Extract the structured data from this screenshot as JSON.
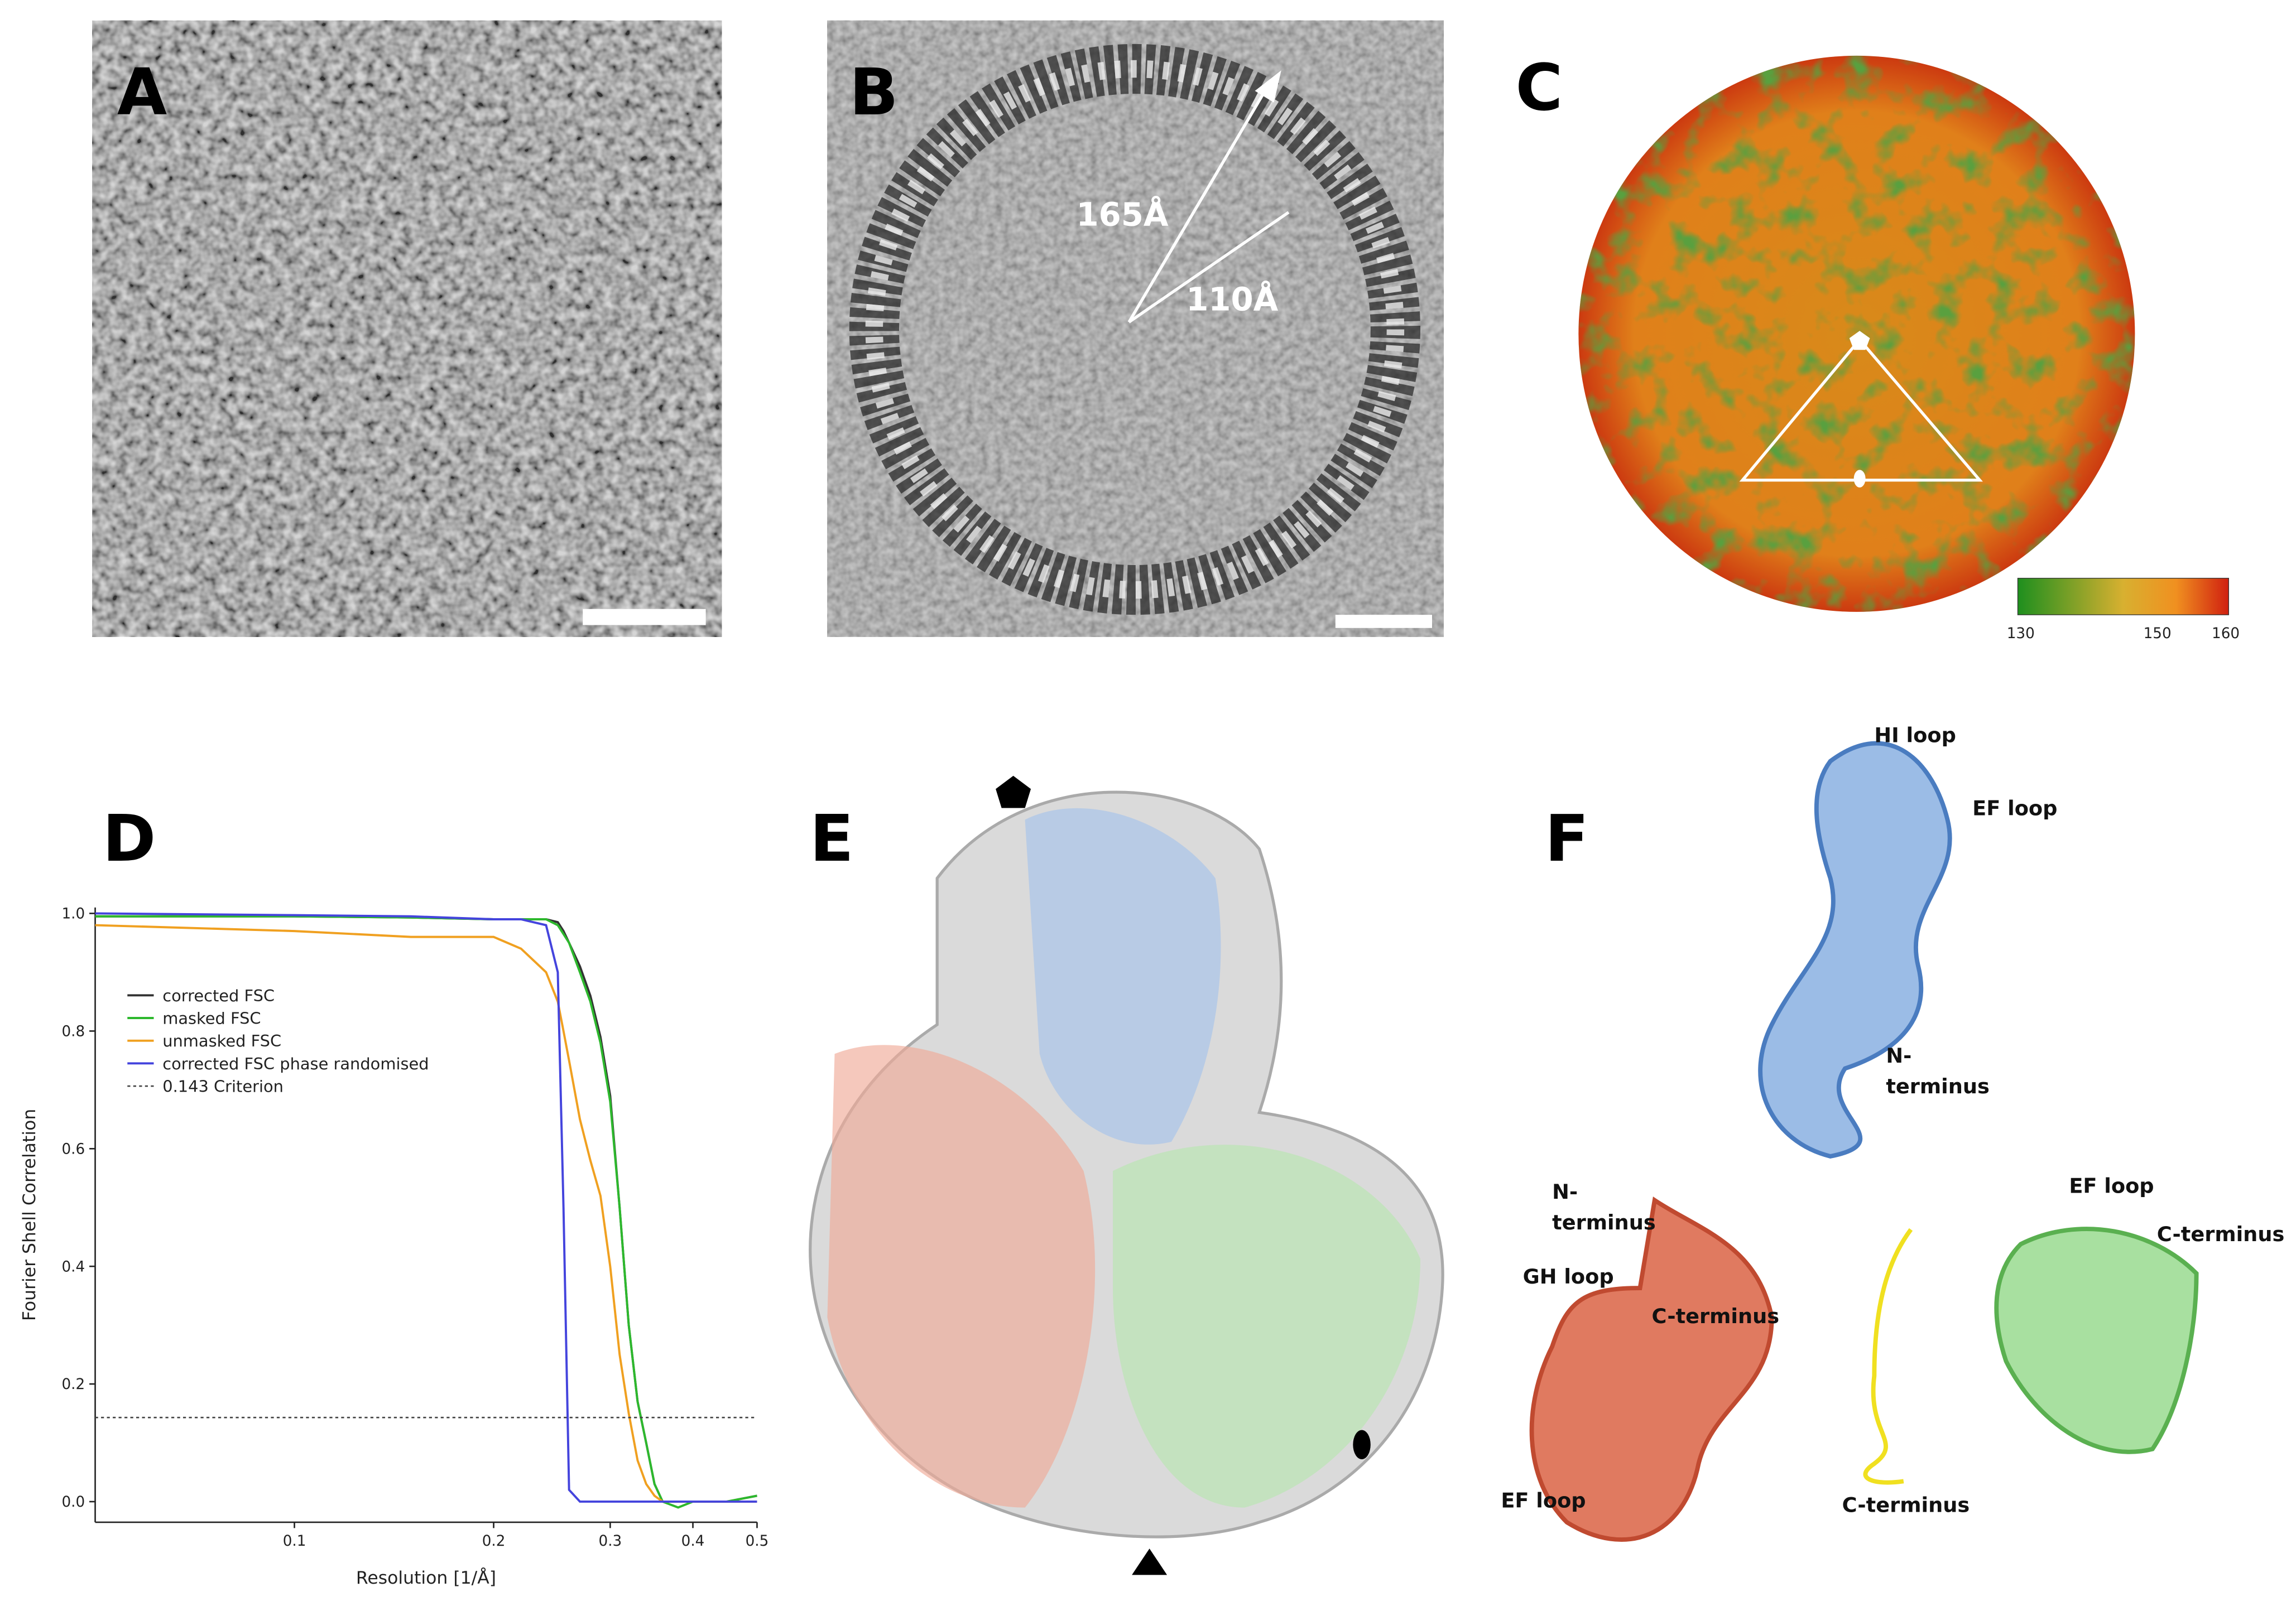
{
  "panels": {
    "A": {
      "label": "A"
    },
    "B": {
      "label": "B",
      "annotations": [
        "165Å",
        "110Å"
      ]
    },
    "C": {
      "label": "C",
      "colorbar_ticks": [
        130,
        150,
        160
      ]
    },
    "D": {
      "label": "D"
    },
    "E": {
      "label": "E"
    },
    "F": {
      "label": "F",
      "annotations": [
        {
          "lines": [
            "HI loop"
          ]
        },
        {
          "lines": [
            "EF loop"
          ]
        },
        {
          "lines": [
            "N-",
            "terminus"
          ]
        },
        {
          "lines": [
            "N-",
            "terminus"
          ]
        },
        {
          "lines": [
            "GH loop"
          ]
        },
        {
          "lines": [
            "C-terminus"
          ]
        },
        {
          "lines": [
            "EF loop"
          ]
        },
        {
          "lines": [
            "C-terminus"
          ]
        },
        {
          "lines": [
            "EF loop"
          ]
        },
        {
          "lines": [
            "C-terminus"
          ]
        }
      ]
    }
  },
  "chart_data": {
    "type": "line",
    "xlabel": "Resolution [1/Å]",
    "ylabel": "Fourier Shell Correlation",
    "xscale": "log",
    "xlim": [
      0.05,
      0.5
    ],
    "ylim": [
      -0.035,
      1.01
    ],
    "xticks": [
      0.1,
      0.2,
      0.3,
      0.4,
      0.5
    ],
    "yticks": [
      {
        "value": 0,
        "label": "0.0"
      },
      0.2,
      0.4,
      0.6,
      0.8,
      {
        "value": 1,
        "label": "1.0"
      }
    ],
    "legend": "upper left",
    "x": [
      0.05,
      0.1,
      0.15,
      0.2,
      0.22,
      0.24,
      0.25,
      0.255,
      0.26,
      0.27,
      0.28,
      0.29,
      0.3,
      0.31,
      0.32,
      0.33,
      0.34,
      0.35,
      0.36,
      0.38,
      0.4,
      0.45,
      0.5
    ],
    "series": [
      {
        "name": "corrected FSC",
        "color": "#333333",
        "values": [
          0.995,
          0.995,
          0.993,
          0.99,
          0.99,
          0.99,
          0.985,
          0.97,
          0.95,
          0.91,
          0.86,
          0.79,
          0.69,
          0.5,
          0.3,
          0.17,
          0.1,
          0.03,
          0.0,
          0.0,
          0.0,
          0.0,
          0.01
        ]
      },
      {
        "name": "masked FSC",
        "color": "#2db82d",
        "values": [
          0.995,
          0.995,
          0.993,
          0.99,
          0.99,
          0.99,
          0.98,
          0.965,
          0.95,
          0.9,
          0.85,
          0.78,
          0.68,
          0.5,
          0.3,
          0.17,
          0.1,
          0.03,
          0.0,
          -0.01,
          0.0,
          0.0,
          0.01
        ]
      },
      {
        "name": "unmasked FSC",
        "color": "#f0a020",
        "values": [
          0.98,
          0.97,
          0.96,
          0.96,
          0.94,
          0.9,
          0.85,
          0.8,
          0.75,
          0.65,
          0.58,
          0.52,
          0.4,
          0.25,
          0.15,
          0.07,
          0.03,
          0.01,
          0.0,
          0.0,
          0.0,
          0.0,
          0.0
        ]
      },
      {
        "name": "corrected FSC phase randomised",
        "color": "#4444dd",
        "values": [
          1.0,
          0.997,
          0.995,
          0.99,
          0.99,
          0.98,
          0.9,
          0.5,
          0.02,
          0.0,
          0.0,
          0.0,
          0.0,
          0.0,
          0.0,
          0.0,
          0.0,
          0.0,
          0.0,
          0.0,
          0.0,
          0.0,
          0.0
        ]
      },
      {
        "name": "0.143 Criterion",
        "color": "#444444",
        "dash": true,
        "values": [
          0.143,
          0.143,
          0.143,
          0.143,
          0.143,
          0.143,
          0.143,
          0.143,
          0.143,
          0.143,
          0.143,
          0.143,
          0.143,
          0.143,
          0.143,
          0.143,
          0.143,
          0.143,
          0.143,
          0.143,
          0.143,
          0.143,
          0.143
        ]
      }
    ]
  }
}
